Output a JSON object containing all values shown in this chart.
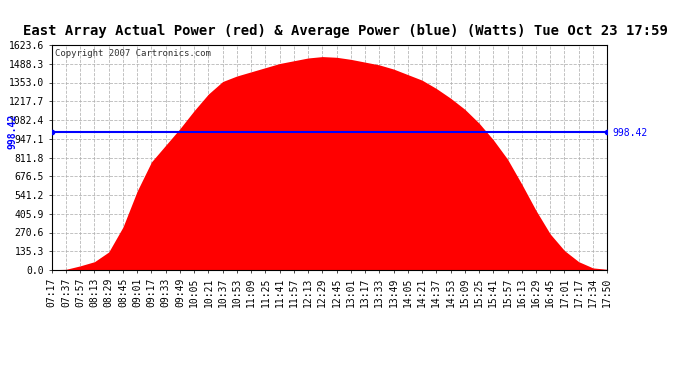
{
  "title": "East Array Actual Power (red) & Average Power (blue) (Watts) Tue Oct 23 17:59",
  "copyright": "Copyright 2007 Cartronics.com",
  "avg_power": 998.42,
  "y_max": 1623.6,
  "y_min": 0.0,
  "y_ticks": [
    0.0,
    135.3,
    270.6,
    405.9,
    541.2,
    676.5,
    811.8,
    947.1,
    1082.4,
    1217.7,
    1353.0,
    1488.3,
    1623.6
  ],
  "x_labels": [
    "07:17",
    "07:37",
    "07:57",
    "08:13",
    "08:29",
    "08:45",
    "09:01",
    "09:17",
    "09:33",
    "09:49",
    "10:05",
    "10:21",
    "10:37",
    "10:53",
    "11:09",
    "11:25",
    "11:41",
    "11:57",
    "12:13",
    "12:29",
    "12:45",
    "13:01",
    "13:17",
    "13:33",
    "13:49",
    "14:05",
    "14:21",
    "14:37",
    "14:53",
    "15:09",
    "15:25",
    "15:41",
    "15:57",
    "16:13",
    "16:29",
    "16:45",
    "17:01",
    "17:17",
    "17:34",
    "17:50"
  ],
  "power_values": [
    2,
    5,
    30,
    60,
    130,
    310,
    570,
    780,
    900,
    1020,
    1150,
    1270,
    1360,
    1400,
    1430,
    1460,
    1490,
    1510,
    1530,
    1540,
    1535,
    1520,
    1500,
    1480,
    1450,
    1410,
    1370,
    1310,
    1240,
    1160,
    1060,
    940,
    800,
    620,
    430,
    260,
    140,
    60,
    15,
    5
  ],
  "fill_color": "#ff0000",
  "line_color": "#0000ff",
  "bg_color": "#ffffff",
  "grid_color": "#b0b0b0",
  "title_fontsize": 10,
  "tick_fontsize": 7,
  "copyright_fontsize": 6.5
}
